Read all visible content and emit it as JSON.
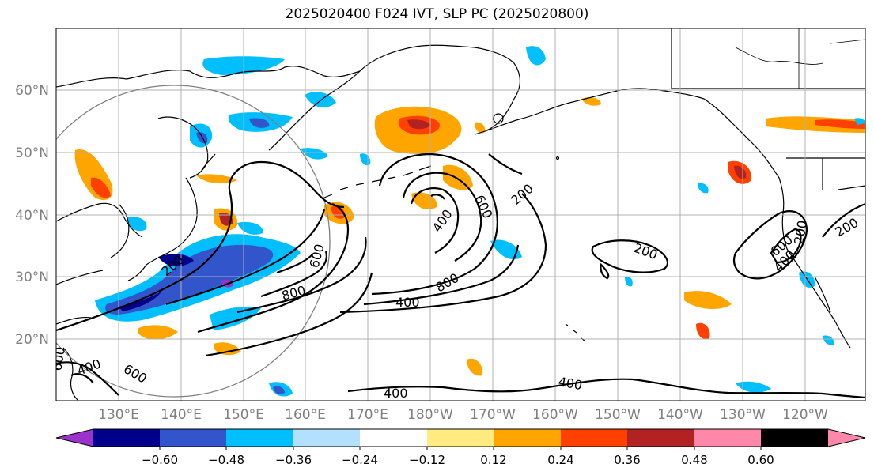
{
  "title": "2025020400 F024 IVT, SLP PC (2025020800)",
  "lat_labels": [
    "60°N",
    "50°N",
    "40°N",
    "30°N",
    "20°N"
  ],
  "lon_labels": [
    "130°E",
    "140°E",
    "150°E",
    "160°E",
    "170°E",
    "180°W",
    "170°W",
    "160°W",
    "150°W",
    "140°W",
    "130°W",
    "120°W"
  ],
  "contour_labels": [
    "200",
    "200",
    "200",
    "200",
    "400",
    "400",
    "400",
    "400",
    "400",
    "400",
    "600",
    "600",
    "600",
    "600",
    "800",
    "800",
    "200",
    "600"
  ],
  "colorbar": {
    "ticks": [
      "−0.60",
      "−0.48",
      "−0.36",
      "−0.24",
      "−0.12",
      "0.12",
      "0.24",
      "0.36",
      "0.48",
      "0.60"
    ],
    "colors": [
      "#9933cc",
      "#00008b",
      "#3355cc",
      "#00bfff",
      "#b3e0ff",
      "#ffffff",
      "#ffeb80",
      "#ffa500",
      "#ff4000",
      "#b22222",
      "#ff88aa"
    ]
  },
  "colors": {
    "axis_label": "#7f7f7f",
    "grid": "#b0b0b0",
    "contour": "#000000"
  }
}
